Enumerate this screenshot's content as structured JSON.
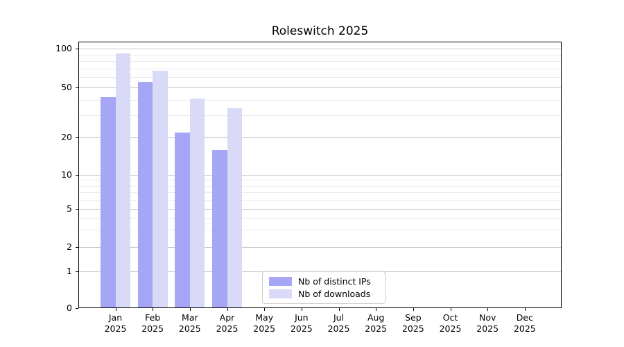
{
  "chart_data": {
    "type": "bar",
    "title": "Roleswitch 2025",
    "x_axis": {
      "categories": [
        "Jan",
        "Feb",
        "Mar",
        "Apr",
        "May",
        "Jun",
        "Jul",
        "Aug",
        "Sep",
        "Oct",
        "Nov",
        "Dec"
      ],
      "year_label": "2025"
    },
    "y_axis": {
      "scale": "log-like",
      "major_ticks": [
        0,
        1,
        2,
        5,
        10,
        20,
        50,
        100
      ],
      "minor_ticks": [
        3,
        4,
        6,
        7,
        8,
        9,
        30,
        40,
        60,
        70,
        80,
        90
      ],
      "ylim": [
        0,
        113
      ]
    },
    "series": [
      {
        "name": "Nb of distinct IPs",
        "color": "#a6a6f6",
        "values": [
          42,
          55,
          22,
          16,
          null,
          null,
          null,
          null,
          null,
          null,
          null,
          null
        ]
      },
      {
        "name": "Nb of downloads",
        "color": "#d9d9f8",
        "values": [
          92,
          67,
          41,
          34,
          null,
          null,
          null,
          null,
          null,
          null,
          null,
          null
        ]
      }
    ],
    "grid": {
      "major": true,
      "minor": true
    },
    "legend_position": "lower center"
  },
  "colors": {
    "major_grid": "#c6c6c6",
    "minor_grid": "#ebebeb",
    "spine": "#000000",
    "background": "#ffffff"
  }
}
